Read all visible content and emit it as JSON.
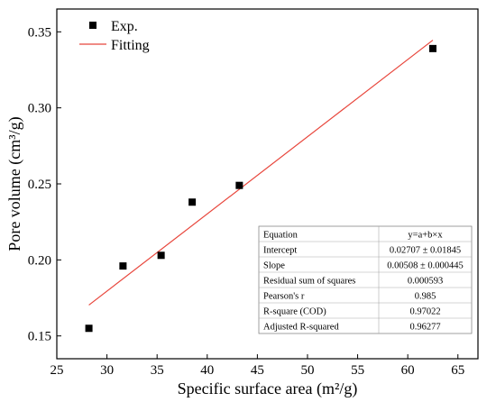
{
  "chart_data": {
    "type": "scatter",
    "xlabel": "Specific surface area  (m²/g)",
    "ylabel": "Pore volume  (cm³/g)",
    "xlim": [
      25,
      67
    ],
    "ylim": [
      0.135,
      0.365
    ],
    "xticks": [
      {
        "v": 25,
        "label": "25"
      },
      {
        "v": 30,
        "label": "30"
      },
      {
        "v": 35,
        "label": "35"
      },
      {
        "v": 40,
        "label": "40"
      },
      {
        "v": 45,
        "label": "45"
      },
      {
        "v": 50,
        "label": "50"
      },
      {
        "v": 55,
        "label": "55"
      },
      {
        "v": 60,
        "label": "60"
      },
      {
        "v": 65,
        "label": "65"
      }
    ],
    "yticks": [
      {
        "v": 0.15,
        "label": "0.15"
      },
      {
        "v": 0.2,
        "label": "0.20"
      },
      {
        "v": 0.25,
        "label": "0.25"
      },
      {
        "v": 0.3,
        "label": "0.30"
      },
      {
        "v": 0.35,
        "label": "0.35"
      }
    ],
    "series": [
      {
        "name": "Exp.",
        "marker": "square",
        "color": "#000000",
        "x": [
          28.2,
          31.6,
          35.4,
          38.5,
          43.2,
          62.5
        ],
        "y": [
          0.155,
          0.196,
          0.203,
          0.238,
          0.249,
          0.339
        ]
      },
      {
        "name": "Fitting",
        "type": "line",
        "color": "#e8463c",
        "x": [
          28.2,
          62.5
        ],
        "y": [
          0.1703,
          0.3445
        ]
      }
    ],
    "legend": {
      "position": "top-left"
    },
    "stats_table": {
      "position": "bottom-right",
      "rows": [
        [
          "Equation",
          "y=a+b×x"
        ],
        [
          "Intercept",
          "0.02707 ± 0.01845"
        ],
        [
          "Slope",
          "0.00508 ± 0.000445"
        ],
        [
          "Residual sum of squares",
          "0.000593"
        ],
        [
          "Pearson's r",
          "0.985"
        ],
        [
          "R-square (COD)",
          "0.97022"
        ],
        [
          "Adjusted R-squared",
          "0.96277"
        ]
      ]
    },
    "grid": false
  }
}
